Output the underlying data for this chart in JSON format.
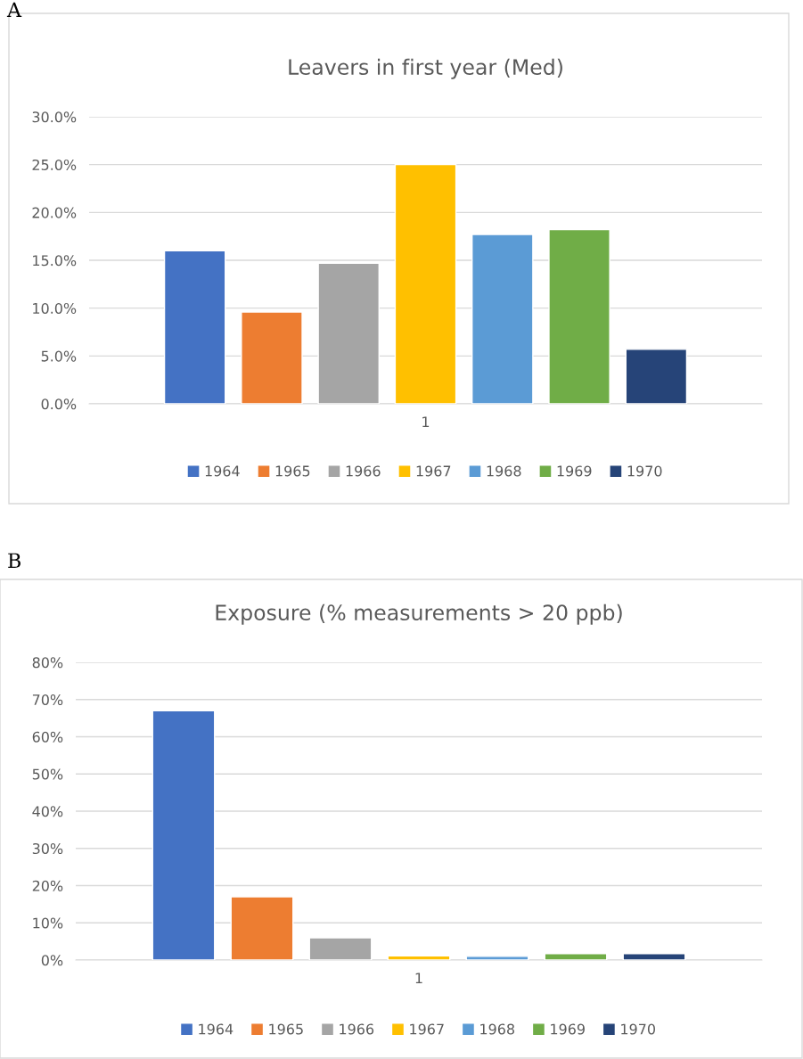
{
  "chart_data": [
    {
      "type": "bar",
      "title": "Leavers in first year (Med)",
      "annotations": [
        "A"
      ],
      "categories": [
        "1"
      ],
      "series": [
        {
          "name": "1964",
          "color": "#4472c4",
          "values": [
            16.0
          ]
        },
        {
          "name": "1965",
          "color": "#ed7d31",
          "values": [
            9.6
          ]
        },
        {
          "name": "1966",
          "color": "#a5a5a5",
          "values": [
            14.7
          ]
        },
        {
          "name": "1967",
          "color": "#ffc000",
          "values": [
            25.0
          ]
        },
        {
          "name": "1968",
          "color": "#5b9bd5",
          "values": [
            17.7
          ]
        },
        {
          "name": "1969",
          "color": "#70ad47",
          "values": [
            18.2
          ]
        },
        {
          "name": "1970",
          "color": "#264478",
          "values": [
            5.7
          ]
        }
      ],
      "ylim": [
        0,
        30
      ],
      "yticks": [
        {
          "value": 0,
          "label": "0.0%"
        },
        {
          "value": 5,
          "label": "5.0%"
        },
        {
          "value": 10,
          "label": "10.0%"
        },
        {
          "value": 15,
          "label": "15.0%"
        },
        {
          "value": 20,
          "label": "20.0%"
        },
        {
          "value": 25,
          "label": "25.0%"
        },
        {
          "value": 30,
          "label": "30.0%"
        }
      ],
      "grid": "y",
      "legend": "bottom"
    },
    {
      "type": "bar",
      "title": "Exposure (% measurements > 20 ppb)",
      "annotations": [
        "B"
      ],
      "categories": [
        "1"
      ],
      "series": [
        {
          "name": "1964",
          "color": "#4472c4",
          "values": [
            67.0
          ]
        },
        {
          "name": "1965",
          "color": "#ed7d31",
          "values": [
            17.0
          ]
        },
        {
          "name": "1966",
          "color": "#a5a5a5",
          "values": [
            6.0
          ]
        },
        {
          "name": "1967",
          "color": "#ffc000",
          "values": [
            1.1
          ]
        },
        {
          "name": "1968",
          "color": "#5b9bd5",
          "values": [
            1.0
          ]
        },
        {
          "name": "1969",
          "color": "#70ad47",
          "values": [
            1.7
          ]
        },
        {
          "name": "1970",
          "color": "#264478",
          "values": [
            1.7
          ]
        }
      ],
      "ylim": [
        0,
        80
      ],
      "yticks": [
        {
          "value": 0,
          "label": "0%"
        },
        {
          "value": 10,
          "label": "10%"
        },
        {
          "value": 20,
          "label": "20%"
        },
        {
          "value": 30,
          "label": "30%"
        },
        {
          "value": 40,
          "label": "40%"
        },
        {
          "value": 50,
          "label": "50%"
        },
        {
          "value": 60,
          "label": "60%"
        },
        {
          "value": 70,
          "label": "70%"
        },
        {
          "value": 80,
          "label": "80%"
        }
      ],
      "grid": "y",
      "legend": "bottom"
    }
  ]
}
